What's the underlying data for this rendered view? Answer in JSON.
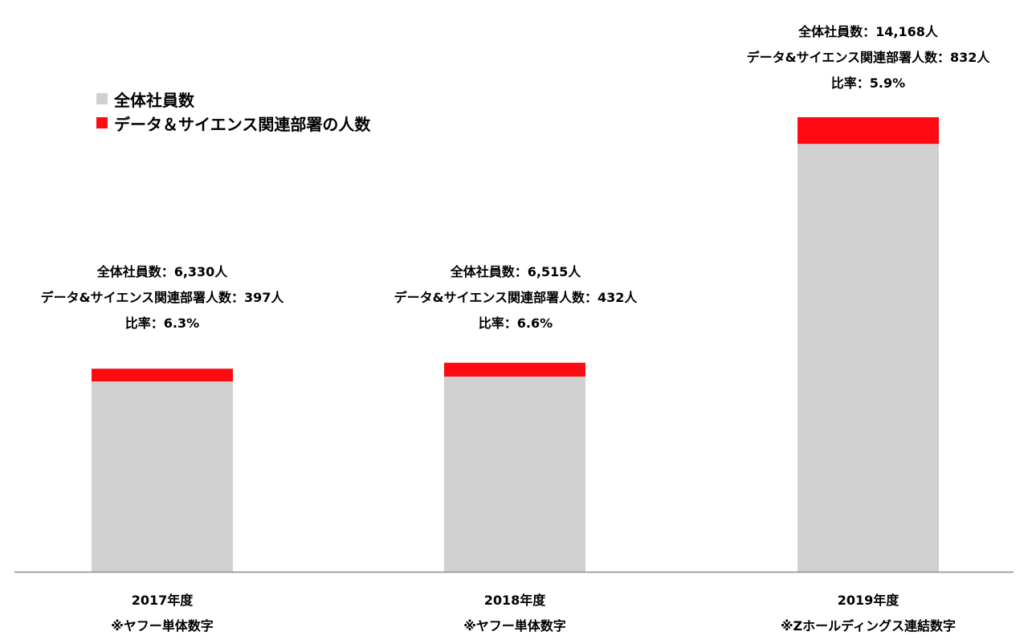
{
  "legend": [
    {
      "label": "全体社員数",
      "color": "#d1d0d1"
    },
    {
      "label": "データ＆サイエンス関連部署の人数",
      "color": "#fe0a12"
    }
  ],
  "chart_data": {
    "type": "bar",
    "stacked": true,
    "categories": [
      "2017年度",
      "2018年度",
      "2019年度"
    ],
    "category_notes": [
      "※ヤフー単体数字",
      "※ヤフー単体数字",
      "※Zホールディングス連結数字"
    ],
    "series": [
      {
        "name": "全体社員数",
        "values": [
          5933,
          6083,
          13336
        ],
        "color": "#d1d0d1"
      },
      {
        "name": "データ＆サイエンス関連部署の人数",
        "values": [
          397,
          432,
          832
        ],
        "color": "#fe0a12"
      }
    ],
    "totals": [
      6330,
      6515,
      14168
    ],
    "annotations": [
      {
        "line1": "全体社員数：6,330人",
        "line2": "データ&サイエンス関連部署人数：397人",
        "line3": "比率：6.3%"
      },
      {
        "line1": "全体社員数：6,515人",
        "line2": "データ&サイエンス関連部署人数：432人",
        "line3": "比率：6.6%"
      },
      {
        "line1": "全体社員数：14,168人",
        "line2": "データ&サイエンス関連部署人数：832人",
        "line3": "比率：5.9%"
      }
    ],
    "ylim": [
      0,
      14168
    ],
    "grid": false,
    "legend_position": "top-left"
  }
}
